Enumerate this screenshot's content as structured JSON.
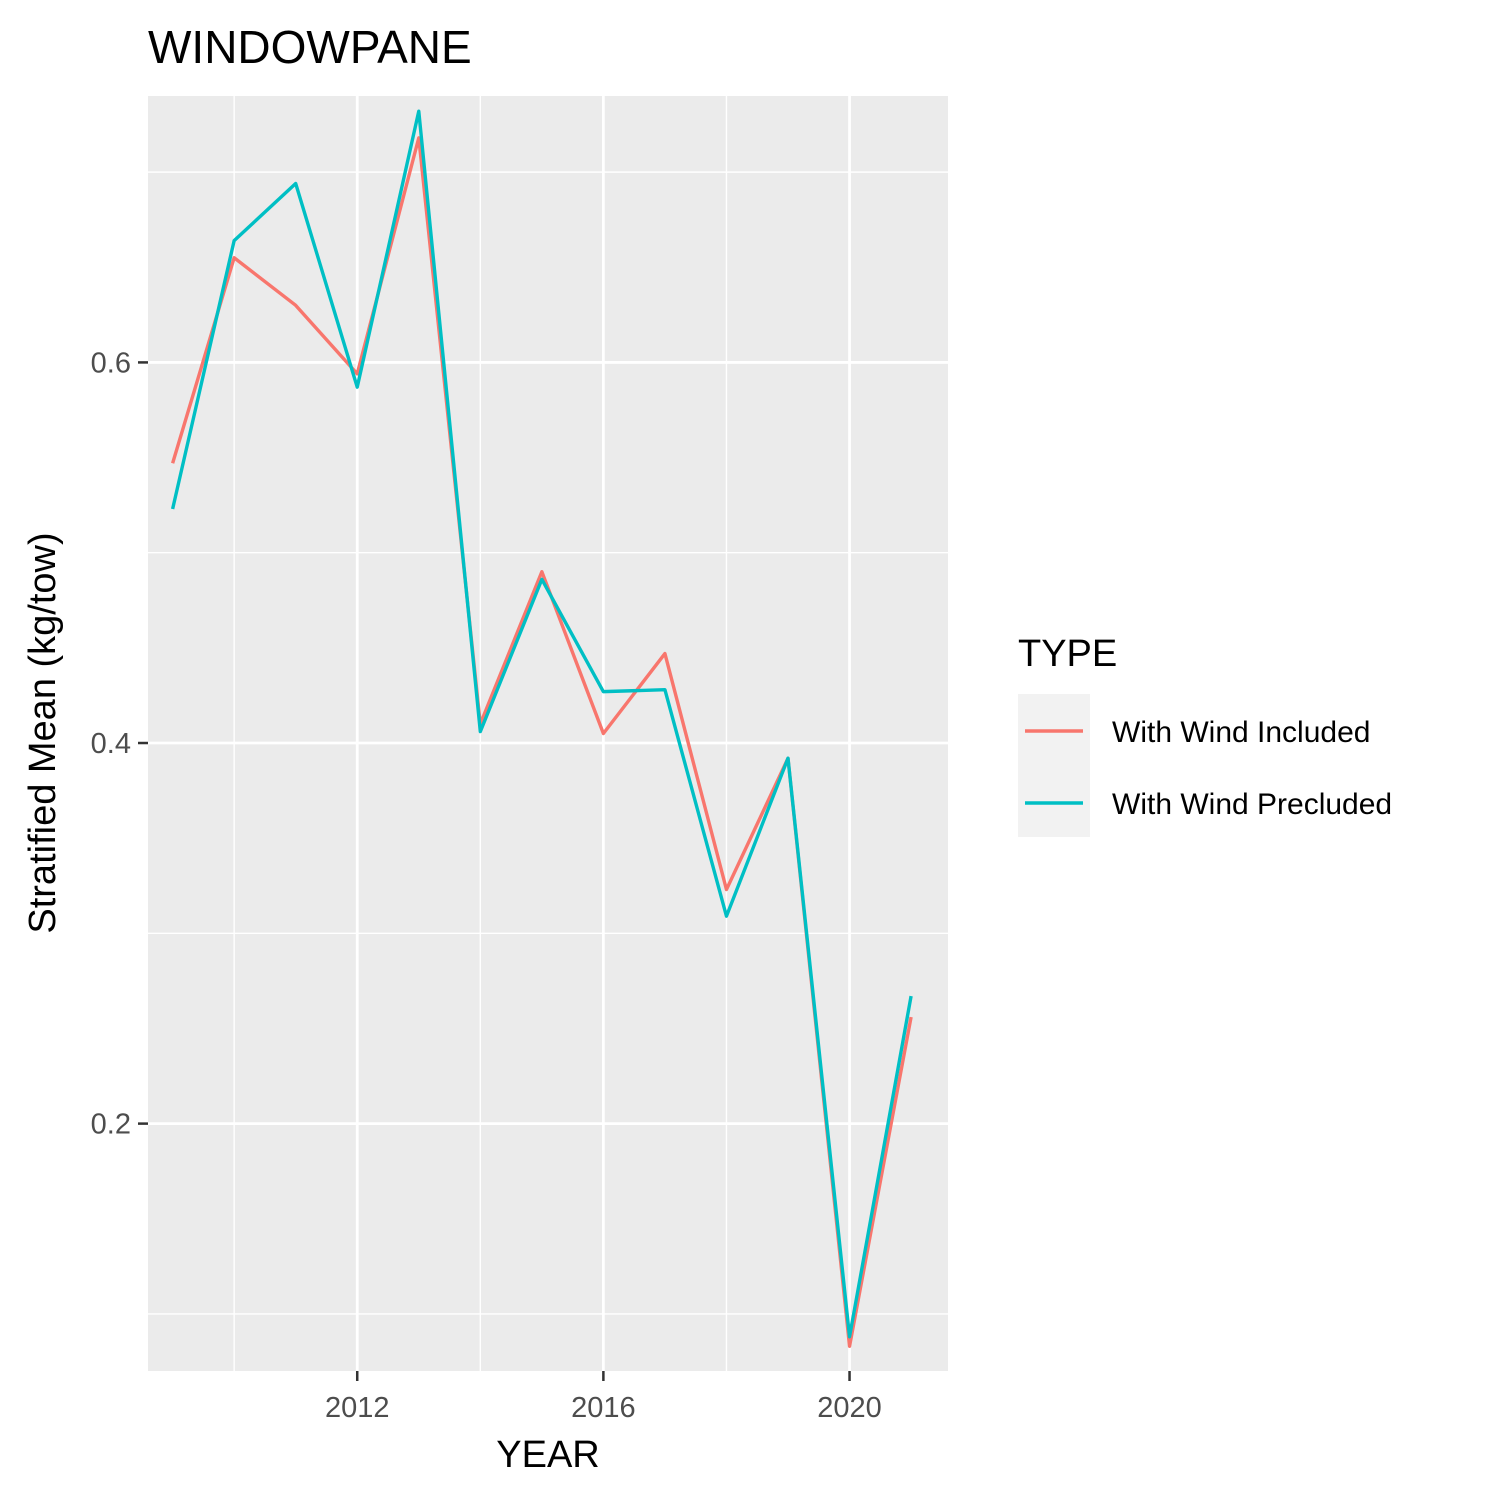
{
  "chart_data": {
    "type": "line",
    "title": "WINDOWPANE",
    "xlabel": "YEAR",
    "ylabel": "Stratified Mean (kg/tow)",
    "xlim": [
      2008.6,
      2021.6
    ],
    "ylim": [
      0.07,
      0.74
    ],
    "x_ticks": [
      2012,
      2016,
      2020
    ],
    "x_tick_labels": [
      "2012",
      "2016",
      "2020"
    ],
    "x_minor_ticks": [
      2010,
      2014,
      2018
    ],
    "y_ticks": [
      0.2,
      0.4,
      0.6
    ],
    "y_tick_labels": [
      "0.2",
      "0.4",
      "0.6"
    ],
    "y_minor_ticks": [
      0.1,
      0.3,
      0.5,
      0.7
    ],
    "grid": true,
    "legend": {
      "title": "TYPE",
      "position": "right"
    },
    "x": [
      2009,
      2010,
      2011,
      2012,
      2013,
      2014,
      2015,
      2016,
      2017,
      2018,
      2019,
      2020,
      2021
    ],
    "series": [
      {
        "name": "With Wind Included",
        "color": "#F8766D",
        "values": [
          0.547,
          0.655,
          0.63,
          0.594,
          0.718,
          0.41,
          0.49,
          0.405,
          0.447,
          0.323,
          0.392,
          0.083,
          0.256
        ]
      },
      {
        "name": "With Wind Precluded",
        "color": "#00BFC4",
        "values": [
          0.523,
          0.664,
          0.694,
          0.587,
          0.732,
          0.406,
          0.486,
          0.427,
          0.428,
          0.309,
          0.392,
          0.088,
          0.267
        ]
      }
    ]
  }
}
